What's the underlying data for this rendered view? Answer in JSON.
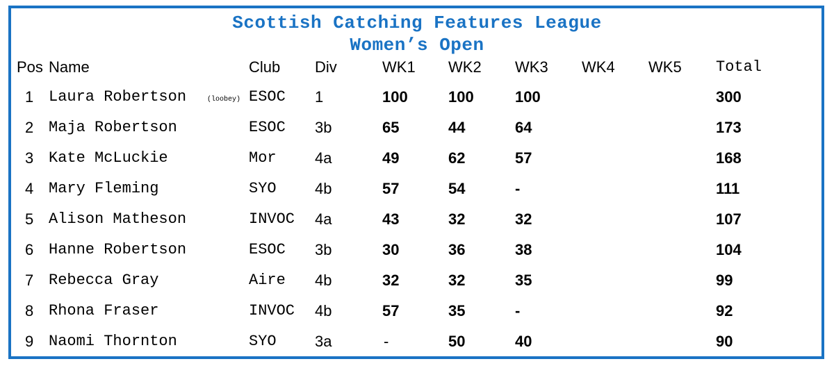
{
  "title": "Scottish Catching Features League",
  "subtitle": "Women’s Open",
  "colors": {
    "accent": "#1a73c4"
  },
  "headers": {
    "pos": "Pos",
    "name": "Name",
    "club": "Club",
    "div": "Div",
    "wk1": "WK1",
    "wk2": "WK2",
    "wk3": "WK3",
    "wk4": "WK4",
    "wk5": "WK5",
    "total": "Total"
  },
  "rows": [
    {
      "pos": "1",
      "name": "Laura Robertson",
      "nick": "(loobey)",
      "club": "ESOC",
      "div": "1",
      "wk1": "100",
      "wk2": "100",
      "wk3": "100",
      "wk4": "",
      "wk5": "",
      "total": "300"
    },
    {
      "pos": "2",
      "name": "Maja Robertson",
      "nick": "",
      "club": "ESOC",
      "div": "3b",
      "wk1": "65",
      "wk2": "44",
      "wk3": "64",
      "wk4": "",
      "wk5": "",
      "total": "173"
    },
    {
      "pos": "3",
      "name": "Kate McLuckie",
      "nick": "",
      "club": "Mor",
      "div": "4a",
      "wk1": "49",
      "wk2": "62",
      "wk3": "57",
      "wk4": "",
      "wk5": "",
      "total": "168"
    },
    {
      "pos": "4",
      "name": "Mary Fleming",
      "nick": "",
      "club": "SYO",
      "div": "4b",
      "wk1": "57",
      "wk2": "54",
      "wk3": "-",
      "wk4": "",
      "wk5": "",
      "total": "111"
    },
    {
      "pos": "5",
      "name": "Alison Matheson",
      "nick": "",
      "club": "INVOC",
      "div": "4a",
      "wk1": "43",
      "wk2": "32",
      "wk3": "32",
      "wk4": "",
      "wk5": "",
      "total": "107"
    },
    {
      "pos": "6",
      "name": "Hanne Robertson",
      "nick": "",
      "club": "ESOC",
      "div": "3b",
      "wk1": "30",
      "wk2": "36",
      "wk3": "38",
      "wk4": "",
      "wk5": "",
      "total": "104"
    },
    {
      "pos": "7",
      "name": "Rebecca Gray",
      "nick": "",
      "club": "Aire",
      "div": "4b",
      "wk1": "32",
      "wk2": "32",
      "wk3": "35",
      "wk4": "",
      "wk5": "",
      "total": "99"
    },
    {
      "pos": "8",
      "name": "Rhona Fraser",
      "nick": "",
      "club": "INVOC",
      "div": "4b",
      "wk1": "57",
      "wk2": "35",
      "wk3": "-",
      "wk4": "",
      "wk5": "",
      "total": "92"
    },
    {
      "pos": "9",
      "name": "Naomi Thornton",
      "nick": "",
      "club": "SYO",
      "div": "3a",
      "wk1": "-",
      "wk2": "50",
      "wk3": "40",
      "wk4": "",
      "wk5": "",
      "total": "90"
    }
  ]
}
